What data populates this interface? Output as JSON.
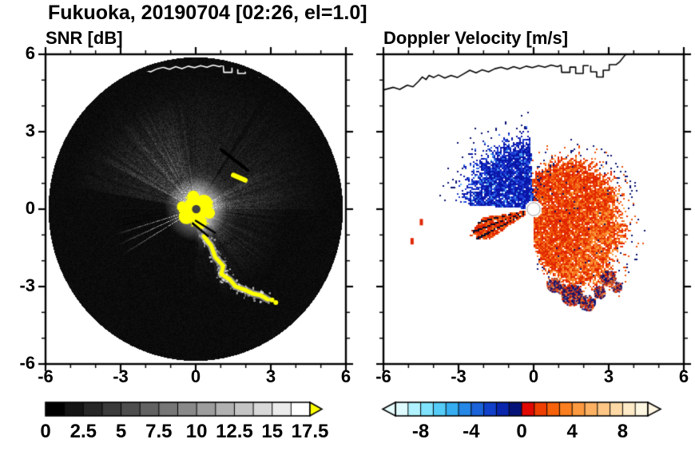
{
  "title": "Fukuoka, 20190704 [02:26, el=1.0]",
  "chart_data": [
    {
      "type": "heatmap",
      "panel": "left",
      "title": "SNR [dB]",
      "xlim": [
        -6,
        6
      ],
      "ylim": [
        -6,
        6
      ],
      "xticks": [
        -6,
        -3,
        0,
        3,
        6
      ],
      "yticks": [
        -6,
        -3,
        0,
        3,
        6
      ],
      "xtick_labels": [
        "-6",
        "-3",
        "0",
        "3",
        "6"
      ],
      "ytick_labels": [
        "-6",
        "-3",
        "0",
        "3",
        "6"
      ],
      "minor_tick_step": 1,
      "radar_disk_radius": 5.88,
      "colorbar": {
        "min": 0,
        "max": 17.5,
        "step": 1.25,
        "tick_values": [
          0,
          2.5,
          5,
          7.5,
          10,
          12.5,
          15,
          17.5
        ],
        "tick_labels": [
          "0",
          "2.5",
          "5",
          "7.5",
          "10",
          "12.5",
          "15",
          "17.5"
        ],
        "start_color": "#000000",
        "end_color": "#ffffff",
        "over_color": "#ffff00"
      },
      "features": {
        "background_disk_color": "#000000",
        "saturated_echo_color": "#ffff00",
        "center_dot_color": "#3f3f3f",
        "coastline_color": "#ffffff",
        "bright_wedge_deg": [
          97,
          153
        ],
        "bright_fan_deg": [
          -72,
          30
        ],
        "dark_sector_deg": [
          -178,
          -92
        ],
        "bright_rays_deg": [
          -163,
          -156,
          -149
        ],
        "dark_ray_deg": [
          55.5,
          58.5
        ],
        "yellow_arc_path": [
          [
            0.32,
            -1.05
          ],
          [
            0.62,
            -1.42
          ],
          [
            0.78,
            -1.86
          ],
          [
            1.1,
            -2.2
          ],
          [
            1.02,
            -2.52
          ],
          [
            1.35,
            -2.72
          ],
          [
            1.6,
            -3.0
          ],
          [
            1.95,
            -3.12
          ],
          [
            2.3,
            -3.28
          ],
          [
            2.6,
            -3.34
          ],
          [
            2.88,
            -3.5
          ]
        ],
        "yellow_arc_extra_dots": [
          [
            3.05,
            -3.52
          ],
          [
            3.2,
            -3.62
          ]
        ],
        "yellow_dash": [
          [
            1.5,
            1.32
          ],
          [
            1.98,
            1.12
          ]
        ],
        "dark_slash": [
          [
            1.02,
            2.3
          ],
          [
            2.08,
            1.5
          ]
        ],
        "center_blob_parts": [
          [
            0,
            0,
            0.5
          ],
          [
            -0.38,
            -0.28,
            0.3
          ],
          [
            0.32,
            0.22,
            0.34
          ],
          [
            0.18,
            -0.52,
            0.26
          ],
          [
            -0.1,
            0.48,
            0.24
          ],
          [
            0.55,
            -0.15,
            0.22
          ],
          [
            -0.55,
            0.1,
            0.2
          ]
        ],
        "shadow_lines": [
          [
            [
              0.0,
              -0.45
            ],
            [
              0.78,
              -0.92
            ]
          ],
          [
            [
              -0.12,
              -0.55
            ],
            [
              0.5,
              -1.05
            ]
          ]
        ]
      }
    },
    {
      "type": "heatmap",
      "panel": "right",
      "title": "Doppler Velocity [m/s]",
      "xlim": [
        -6,
        6
      ],
      "ylim": [
        -6,
        6
      ],
      "xticks": [
        -6,
        -3,
        0,
        3,
        6
      ],
      "yticks": [
        -6,
        -3,
        0,
        3,
        6
      ],
      "xtick_labels": [
        "-6",
        "-3",
        "0",
        "3",
        "6"
      ],
      "minor_tick_step": 1,
      "colorbar": {
        "min": -10,
        "max": 10,
        "tick_values": [
          -8,
          -4,
          0,
          4,
          8
        ],
        "tick_labels": [
          "-8",
          "-4",
          "0",
          "4",
          "8"
        ],
        "colors": [
          "#dffbff",
          "#b0f2ff",
          "#7fe3ff",
          "#55ccf8",
          "#35adf0",
          "#2587e6",
          "#1b63da",
          "#1141cb",
          "#0926ad",
          "#051378",
          "#e10800",
          "#ef3f00",
          "#f7610a",
          "#fb7f20",
          "#fd9a40",
          "#feb162",
          "#fec684",
          "#fed9a6",
          "#feeac6",
          "#fff7e2"
        ],
        "under_color": "#e8feff",
        "over_color": "#fff6e2"
      },
      "features": {
        "approaching_colors": [
          "#0a16a8",
          "#1d3ad4",
          "#2e6ae8",
          "#55aef2"
        ],
        "receding_colors": [
          "#e12600",
          "#ee5108",
          "#f87a24",
          "#fca040"
        ],
        "navy_color": "#0a1270",
        "blue_sector_deg": [
          93,
          176.5
        ],
        "red_sector_deg": [
          -89,
          93
        ],
        "sw_wedge_deg": [
          -171,
          -146
        ],
        "sw_wedge_black_rays_deg": [
          -167,
          -160,
          -153
        ],
        "red_gap_rays_deg": [
          -52,
          -38,
          -27,
          18,
          33
        ],
        "center_dot_color": "#ffffff",
        "coastline_color": "#000000",
        "red_reach_points": [
          [
            -89,
            1.6
          ],
          [
            -80,
            2.6
          ],
          [
            -62,
            3.9
          ],
          [
            -45,
            4.25
          ],
          [
            -20,
            3.95
          ],
          [
            10,
            3.7
          ],
          [
            40,
            3.1
          ],
          [
            65,
            2.5
          ],
          [
            85,
            1.7
          ],
          [
            93,
            1.35
          ]
        ],
        "blob_clusters": [
          [
            0.78,
            -2.92,
            0.26
          ],
          [
            1.5,
            -3.3,
            0.42
          ],
          [
            2.12,
            -3.62,
            0.3
          ],
          [
            2.6,
            -3.2,
            0.24
          ],
          [
            2.95,
            -2.65,
            0.3
          ],
          [
            3.3,
            -3.0,
            0.2
          ],
          [
            1.05,
            -3.05,
            0.2
          ]
        ],
        "isolated_specks": [
          [
            -4.55,
            -0.38
          ],
          [
            -4.92,
            -1.12
          ]
        ]
      }
    }
  ],
  "coastline": {
    "main": [
      [
        -6.0,
        4.62
      ],
      [
        -5.6,
        4.72
      ],
      [
        -5.35,
        4.64
      ],
      [
        -5.05,
        4.8
      ],
      [
        -4.82,
        4.74
      ],
      [
        -4.6,
        4.95
      ],
      [
        -4.45,
        5.12
      ],
      [
        -4.3,
        5.02
      ],
      [
        -4.18,
        5.18
      ],
      [
        -4.0,
        5.1
      ],
      [
        -3.8,
        5.2
      ],
      [
        -3.55,
        5.08
      ],
      [
        -3.3,
        5.18
      ],
      [
        -3.05,
        5.1
      ],
      [
        -2.8,
        5.24
      ],
      [
        -2.55,
        5.38
      ],
      [
        -2.3,
        5.28
      ],
      [
        -2.05,
        5.4
      ],
      [
        -1.8,
        5.32
      ],
      [
        -1.55,
        5.44
      ],
      [
        -1.3,
        5.5
      ],
      [
        -1.05,
        5.42
      ],
      [
        -0.8,
        5.52
      ],
      [
        -0.55,
        5.44
      ],
      [
        -0.3,
        5.54
      ],
      [
        -0.05,
        5.48
      ],
      [
        0.2,
        5.56
      ],
      [
        0.45,
        5.5
      ],
      [
        0.7,
        5.58
      ],
      [
        0.95,
        5.52
      ],
      [
        1.1,
        5.58
      ]
    ],
    "piers": [
      [
        [
          1.1,
          5.58
        ],
        [
          1.12,
          5.3
        ],
        [
          1.45,
          5.3
        ],
        [
          1.45,
          5.5
        ],
        [
          1.68,
          5.5
        ],
        [
          1.68,
          5.26
        ],
        [
          1.98,
          5.26
        ],
        [
          1.98,
          5.56
        ],
        [
          2.2,
          5.56
        ]
      ],
      [
        [
          2.28,
          5.56
        ],
        [
          2.28,
          5.32
        ],
        [
          2.52,
          5.32
        ],
        [
          2.52,
          5.12
        ],
        [
          2.78,
          5.12
        ],
        [
          2.78,
          5.38
        ],
        [
          3.02,
          5.38
        ],
        [
          3.02,
          5.6
        ],
        [
          3.3,
          5.6
        ],
        [
          3.45,
          5.72
        ],
        [
          3.58,
          5.88
        ],
        [
          3.72,
          6.05
        ]
      ]
    ]
  }
}
